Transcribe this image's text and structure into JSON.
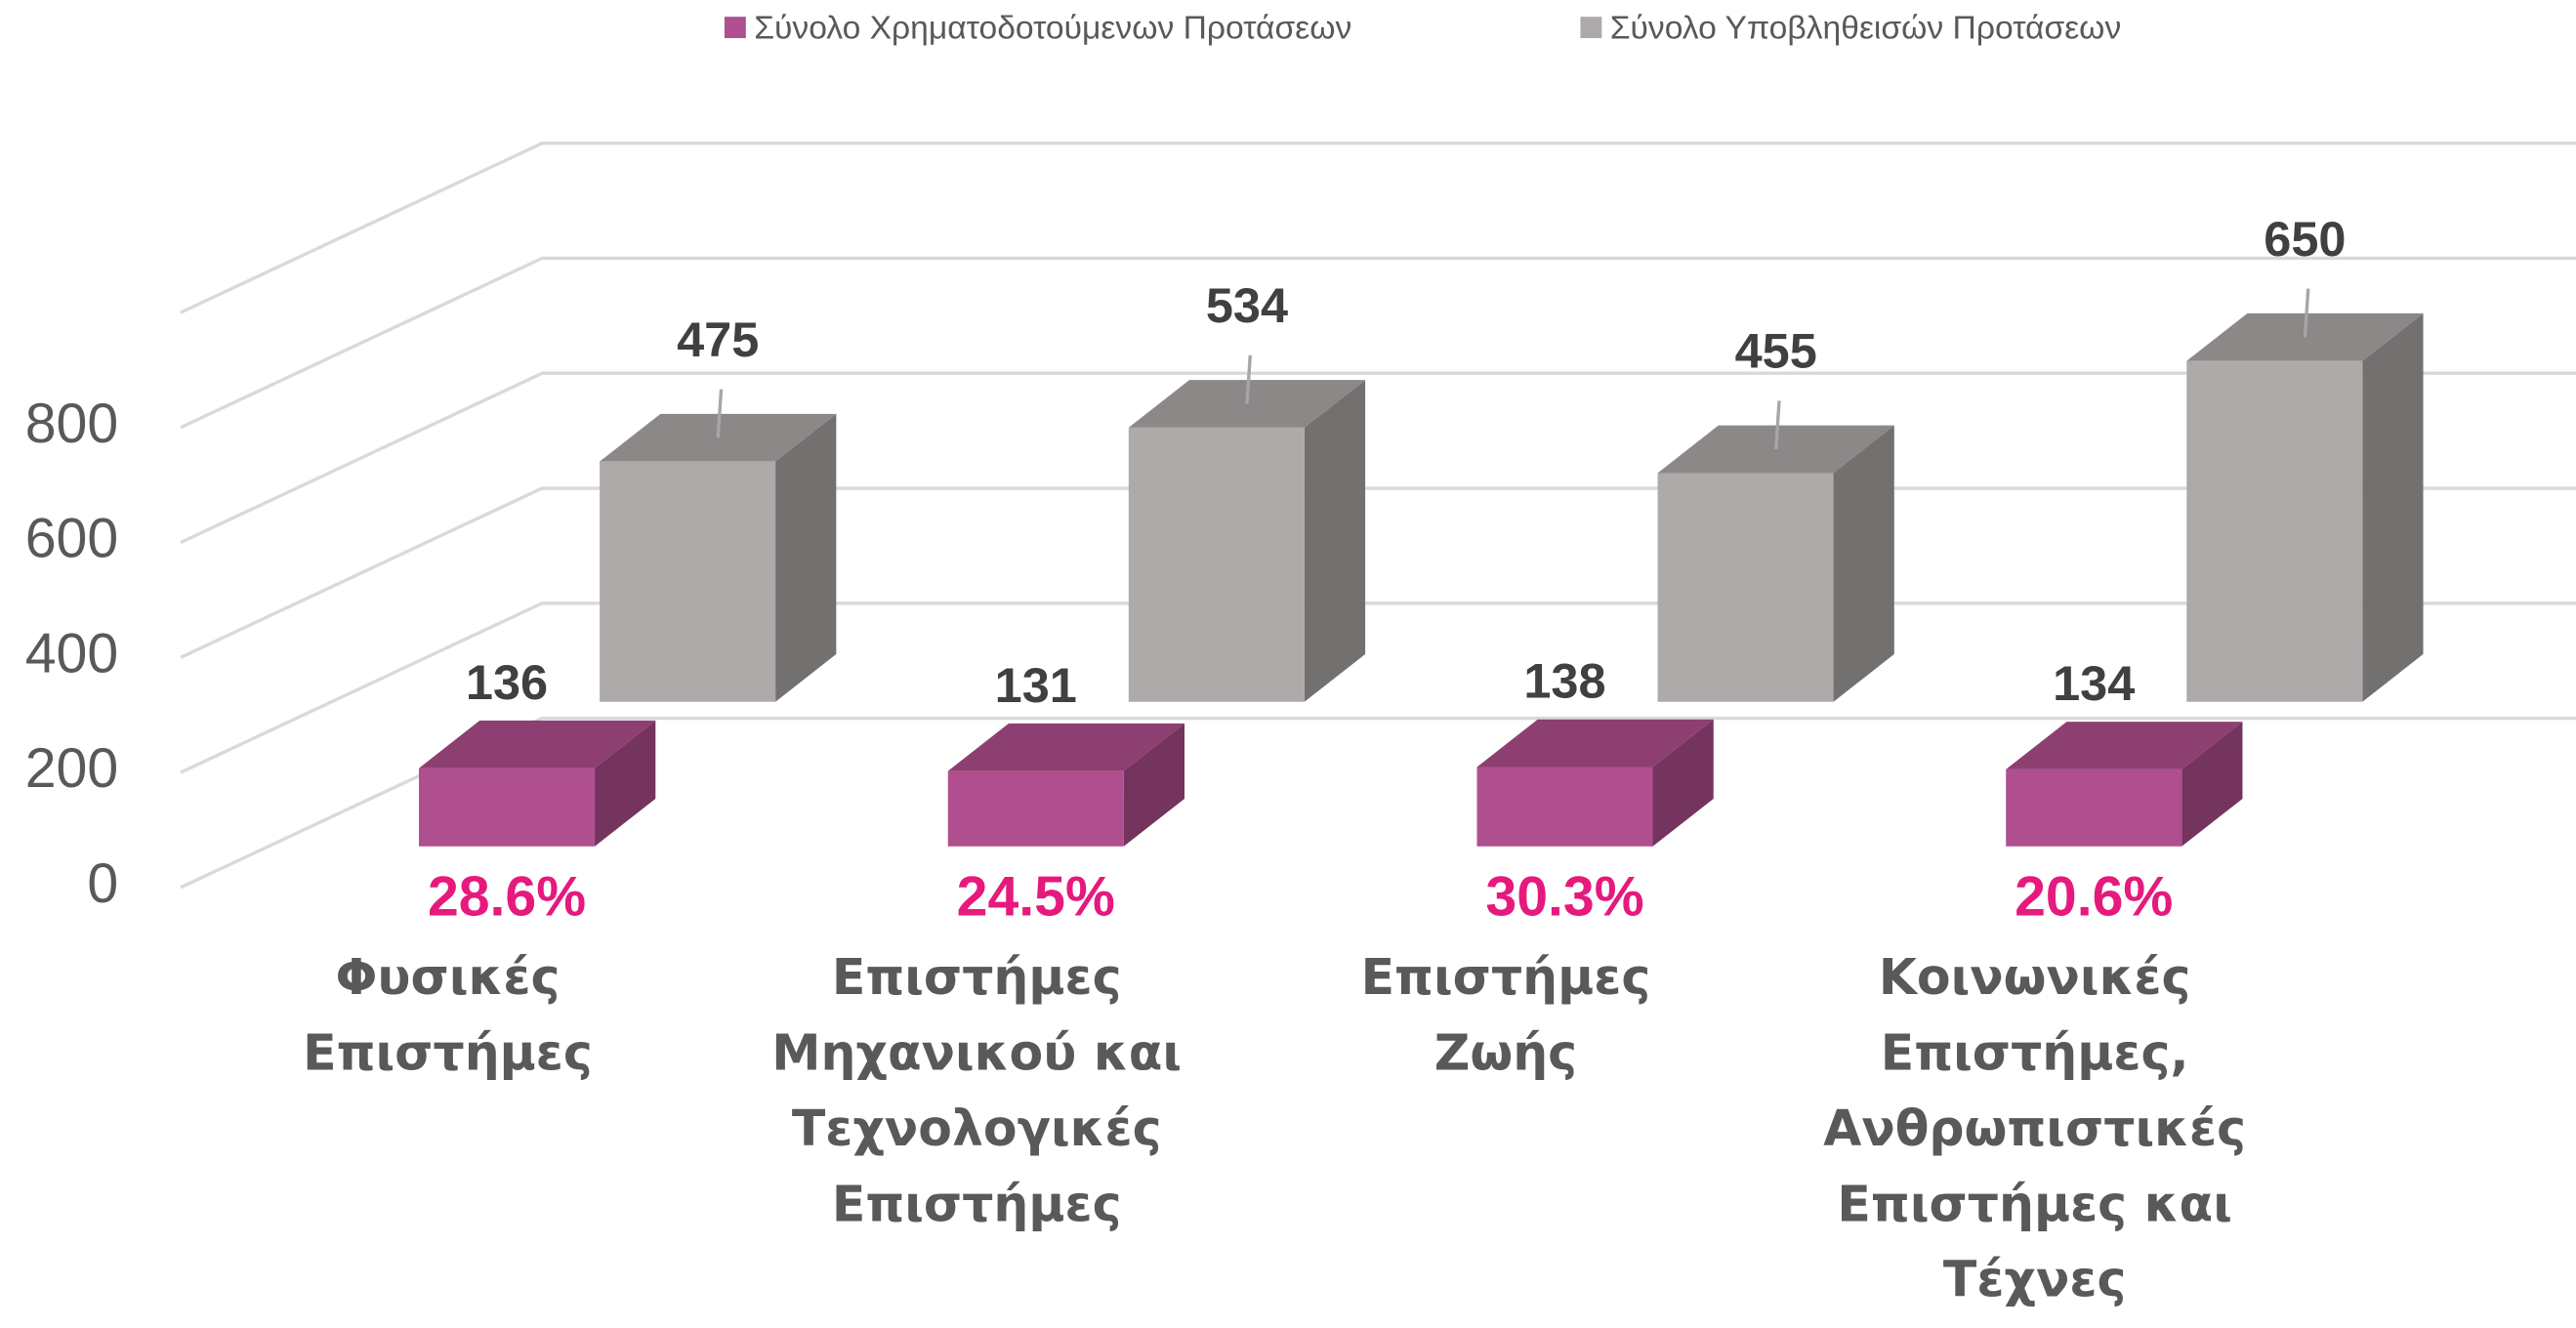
{
  "chart_data": {
    "type": "bar3d",
    "categories": [
      "Φυσικές Επιστήμες",
      "Επιστήμες Μηχανικού και Τεχνολογικές Επιστήμες",
      "Επιστήμες Ζωής",
      "Κοινωνικές Επιστήμες, Ανθρωπιστικές Επιστήμες και Τέχνες"
    ],
    "series": [
      {
        "name": "Σύνολο Χρηματοδοτούμενων Προτάσεων",
        "color": "#b04f8f",
        "values": [
          136,
          131,
          138,
          134
        ]
      },
      {
        "name": "Σύνολο Υποβληθεισών Προτάσεων",
        "color": "#aeaaa9",
        "values": [
          475,
          534,
          455,
          650
        ]
      }
    ],
    "annotations": [
      "28.6%",
      "24.5%",
      "30.3%",
      "20.6%"
    ],
    "ylim": [
      0,
      1000
    ],
    "yticks": [
      0,
      200,
      400,
      600,
      800
    ],
    "grid": true,
    "legend": "top"
  }
}
